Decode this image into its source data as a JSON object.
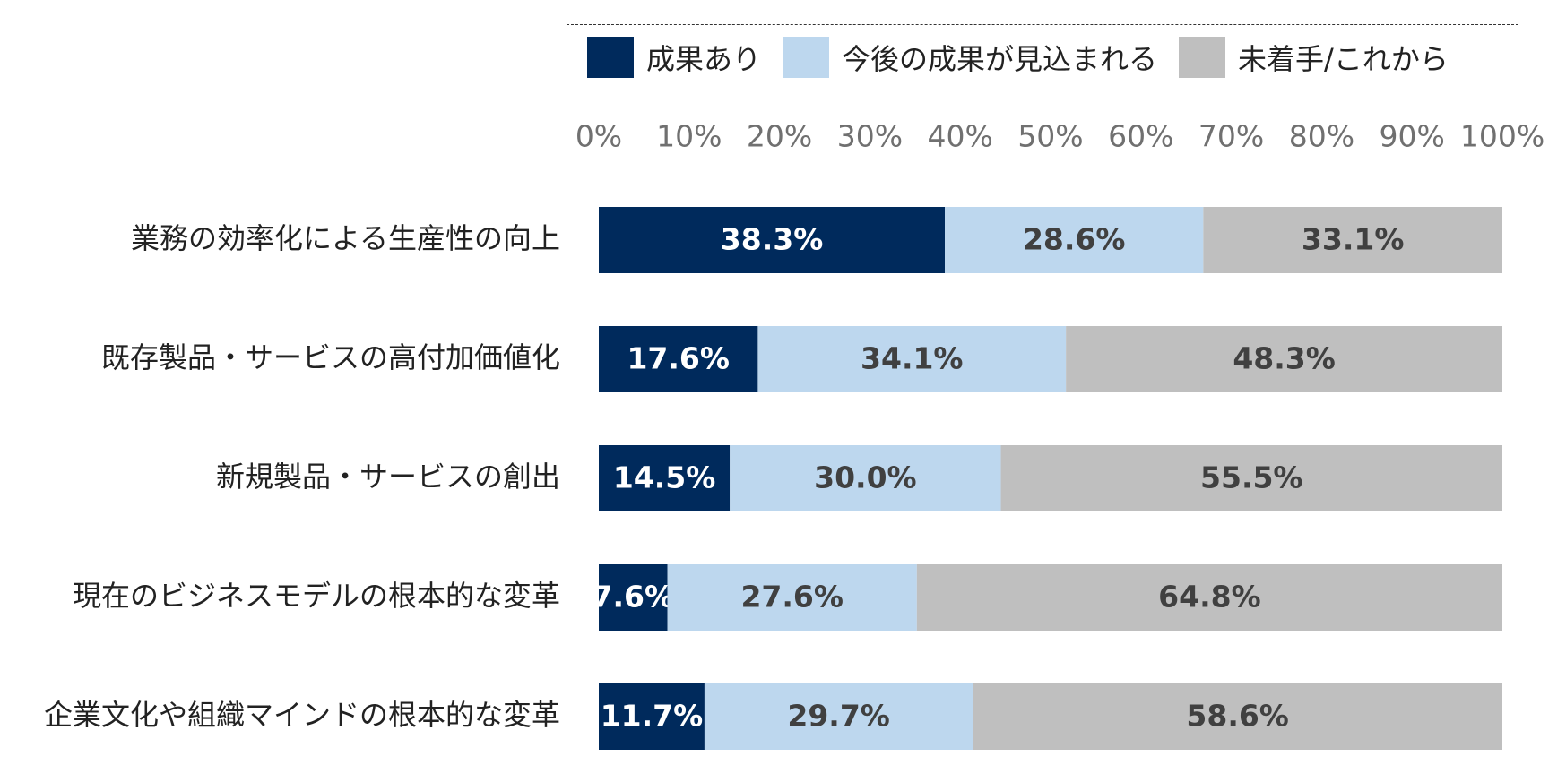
{
  "chart_data": {
    "type": "bar",
    "orientation": "horizontal",
    "stacked": true,
    "categories": [
      "業務の効率化による生産性の向上",
      "既存製品・サービスの高付加価値化",
      "新規製品・サービスの創出",
      "現在のビジネスモデルの根本的な変革",
      "企業文化や組織マインドの根本的な変革"
    ],
    "series": [
      {
        "name": "成果あり",
        "values": [
          38.3,
          17.6,
          14.5,
          7.6,
          11.7
        ],
        "color": "#002a5c",
        "label_color": "#ffffff"
      },
      {
        "name": "今後の成果が見込まれる",
        "values": [
          28.6,
          34.1,
          30.0,
          27.6,
          29.7
        ],
        "color": "#bdd7ee",
        "label_color": "#404040"
      },
      {
        "name": "未着手/これから",
        "values": [
          33.1,
          48.3,
          55.5,
          64.8,
          58.6
        ],
        "color": "#bfbfbf",
        "label_color": "#404040"
      }
    ],
    "value_labels": [
      [
        "38.3%",
        "17.6%",
        "14.5%",
        "7.6%",
        "11.7%"
      ],
      [
        "28.6%",
        "34.1%",
        "30.0%",
        "27.6%",
        "29.7%"
      ],
      [
        "33.1%",
        "48.3%",
        "55.5%",
        "64.8%",
        "58.6%"
      ]
    ],
    "xlim": [
      0,
      100
    ],
    "xticks": [
      "0%",
      "10%",
      "20%",
      "30%",
      "40%",
      "50%",
      "60%",
      "70%",
      "80%",
      "90%",
      "100%"
    ],
    "axis_position": "top",
    "legend_position": "top",
    "grid": false
  }
}
